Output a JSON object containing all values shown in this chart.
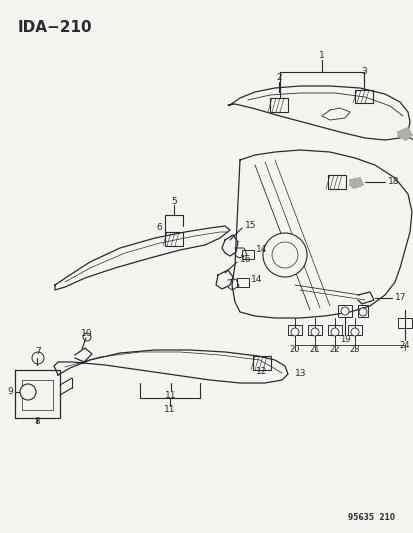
{
  "title": "IDA−210",
  "watermark": "95635  210",
  "bg_color": "#f5f4f0",
  "line_color": "#2a2a2a",
  "title_fontsize": 11,
  "label_fontsize": 6.5
}
